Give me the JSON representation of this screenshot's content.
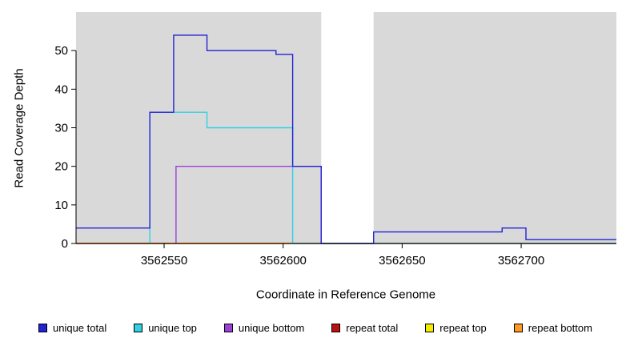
{
  "chart_data": {
    "type": "line",
    "subtype": "step",
    "title": "",
    "xlabel": "Coordinate in Reference Genome",
    "ylabel": "Read Coverage Depth",
    "xlim": [
      3562513,
      3562740
    ],
    "ylim": [
      0,
      60
    ],
    "x_ticks": [
      3562550,
      3562600,
      3562650,
      3562700
    ],
    "y_ticks": [
      0,
      10,
      20,
      30,
      40,
      50
    ],
    "grid": false,
    "background_regions": [
      {
        "name": "shaded-left",
        "x0": 3562513,
        "x1": 3562616,
        "color": "#d9d9d9"
      },
      {
        "name": "shaded-right",
        "x0": 3562638,
        "x1": 3562740,
        "color": "#d9d9d9"
      }
    ],
    "series": [
      {
        "name": "repeat top",
        "color": "#f6ec00",
        "x_end": 3562740,
        "steps": [
          [
            3562513,
            0
          ]
        ]
      },
      {
        "name": "repeat total",
        "color": "#bb1111",
        "x_end": 3562740,
        "steps": [
          [
            3562513,
            0
          ]
        ]
      },
      {
        "name": "repeat bottom",
        "color": "#ff9922",
        "x_end": 3562604,
        "steps": [
          [
            3562552,
            0
          ]
        ]
      },
      {
        "name": "unique bottom",
        "color": "#9a41d8",
        "x_end": 3562616,
        "steps": [
          [
            3562555,
            0
          ],
          [
            3562555,
            20
          ],
          [
            3562616,
            0
          ]
        ]
      },
      {
        "name": "unique top",
        "color": "#30d1e2",
        "x_end": 3562740,
        "steps": [
          [
            3562544,
            0
          ],
          [
            3562544,
            34
          ],
          [
            3562568,
            30
          ],
          [
            3562604,
            0
          ]
        ]
      },
      {
        "name": "unique total",
        "color": "#2323d6",
        "x_end": 3562740,
        "steps": [
          [
            3562513,
            4
          ],
          [
            3562544,
            34
          ],
          [
            3562554,
            54
          ],
          [
            3562568,
            50
          ],
          [
            3562597,
            49
          ],
          [
            3562604,
            20
          ],
          [
            3562616,
            0
          ],
          [
            3562638,
            3
          ],
          [
            3562692,
            4
          ],
          [
            3562702,
            1
          ]
        ]
      }
    ],
    "legend_position": "bottom"
  },
  "legend": {
    "items": [
      {
        "label": "unique total",
        "color": "#2323d6"
      },
      {
        "label": "unique top",
        "color": "#30d1e2"
      },
      {
        "label": "unique bottom",
        "color": "#9a41d8"
      },
      {
        "label": "repeat total",
        "color": "#bb1111"
      },
      {
        "label": "repeat top",
        "color": "#f6ec00"
      },
      {
        "label": "repeat bottom",
        "color": "#ff9922"
      }
    ]
  }
}
